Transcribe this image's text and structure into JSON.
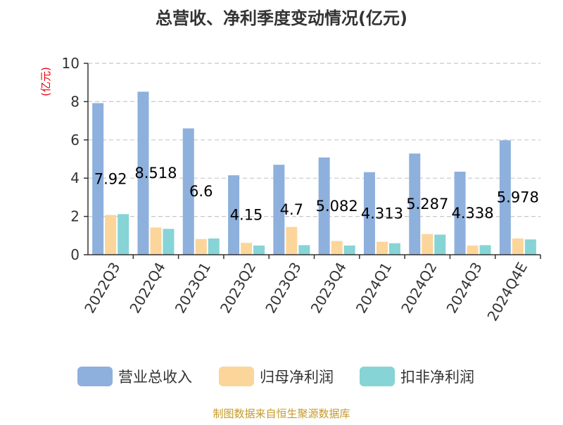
{
  "chart_data": {
    "type": "bar",
    "title": "总营收、净利季度变动情况(亿元)",
    "xlabel": "",
    "ylabel": "(亿元)",
    "ylim": [
      0,
      10
    ],
    "yticks": [
      0,
      2,
      4,
      6,
      8,
      10
    ],
    "grid": true,
    "legend_position": "bottom",
    "categories": [
      "2022Q3",
      "2022Q4",
      "2023Q1",
      "2023Q2",
      "2023Q3",
      "2023Q4",
      "2024Q1",
      "2024Q2",
      "2024Q3",
      "2024Q4E"
    ],
    "series": [
      {
        "name": "营业总收入",
        "color": "#8eb0dc",
        "values": [
          7.92,
          8.518,
          6.6,
          4.15,
          4.7,
          5.082,
          4.313,
          5.287,
          4.338,
          5.978
        ]
      },
      {
        "name": "归母净利润",
        "color": "#fcd59a",
        "values": [
          2.08,
          1.42,
          0.82,
          0.62,
          1.45,
          0.72,
          0.68,
          1.08,
          0.48,
          0.85
        ]
      },
      {
        "name": "扣非净利润",
        "color": "#86d4d6",
        "values": [
          2.12,
          1.35,
          0.85,
          0.48,
          0.5,
          0.48,
          0.6,
          1.05,
          0.5,
          0.8
        ]
      }
    ],
    "data_labels": [
      "7.92",
      "8.518",
      "6.6",
      "4.15",
      "4.7",
      "5.082",
      "4.313",
      "5.287",
      "4.338",
      "5.978"
    ],
    "source": "制图数据来自恒生聚源数据库"
  }
}
